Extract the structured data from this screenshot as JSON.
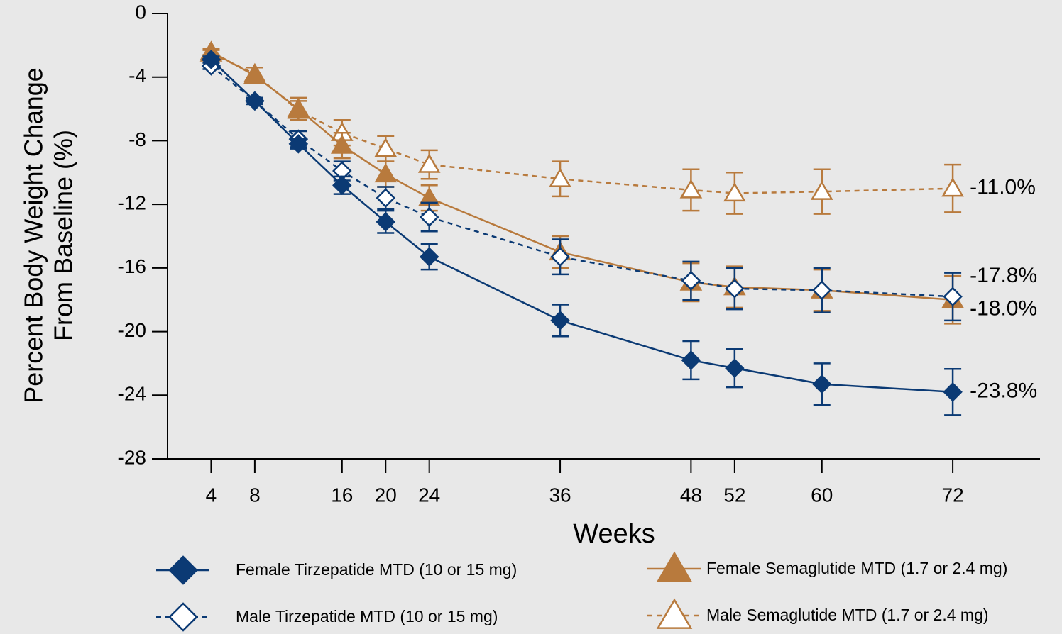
{
  "chart_data": {
    "type": "line",
    "x_label": "Weeks",
    "y_label": [
      "Percent Body Weight Change",
      "From Baseline (%)"
    ],
    "x": [
      4,
      8,
      12,
      16,
      20,
      24,
      36,
      48,
      52,
      60,
      72
    ],
    "xlim": [
      0,
      80
    ],
    "xticks": [
      4,
      8,
      16,
      20,
      24,
      36,
      48,
      52,
      60,
      72
    ],
    "ylim": [
      -28,
      0
    ],
    "yticks": [
      0,
      -4,
      -8,
      -12,
      -16,
      -20,
      -24,
      -28
    ],
    "series": [
      {
        "name": "Female Tirzepatide MTD (10 or 15 mg)",
        "color": "#0b3a74",
        "marker": "diamond",
        "filled": true,
        "dashed": false,
        "values": [
          -2.9,
          -5.5,
          -8.2,
          -10.8,
          -13.1,
          -15.3,
          -19.3,
          -21.8,
          -22.3,
          -23.3,
          -23.8
        ],
        "errors": [
          0.2,
          0.2,
          0.3,
          0.55,
          0.7,
          0.8,
          1.0,
          1.2,
          1.2,
          1.3,
          1.45
        ],
        "end_label": "-23.8%"
      },
      {
        "name": "Male Tirzepatide MTD (10 or 15 mg)",
        "color": "#0b3a74",
        "marker": "diamond",
        "filled": false,
        "dashed": true,
        "values": [
          -3.3,
          -5.5,
          -7.9,
          -9.9,
          -11.6,
          -12.8,
          -15.3,
          -16.8,
          -17.3,
          -17.4,
          -17.8
        ],
        "errors": [
          0.2,
          0.2,
          0.5,
          0.6,
          0.7,
          0.9,
          1.1,
          1.2,
          1.3,
          1.4,
          1.5
        ],
        "end_label": "-17.8%"
      },
      {
        "name": "Female Semaglutide MTD (1.7 or 2.4 mg)",
        "color": "#b87a3d",
        "marker": "triangle",
        "filled": true,
        "dashed": false,
        "values": [
          -2.4,
          -3.9,
          -6.0,
          -8.3,
          -10.1,
          -11.6,
          -15.0,
          -16.9,
          -17.2,
          -17.4,
          -18.0
        ],
        "errors": [
          0.2,
          0.5,
          0.7,
          0.8,
          0.8,
          0.8,
          1.0,
          1.2,
          1.3,
          1.3,
          1.5
        ],
        "end_label": "-18.0%"
      },
      {
        "name": "Male Semaglutide MTD (1.7 or 2.4 mg)",
        "color": "#b87a3d",
        "marker": "triangle",
        "filled": false,
        "dashed": true,
        "values": [
          -2.5,
          -3.8,
          -6.1,
          -7.5,
          -8.5,
          -9.5,
          -10.4,
          -11.1,
          -11.3,
          -11.2,
          -11.0
        ],
        "errors": [
          0.2,
          0.4,
          0.6,
          0.8,
          0.8,
          0.9,
          1.1,
          1.3,
          1.3,
          1.4,
          1.5
        ],
        "end_label": "-11.0%"
      }
    ]
  }
}
